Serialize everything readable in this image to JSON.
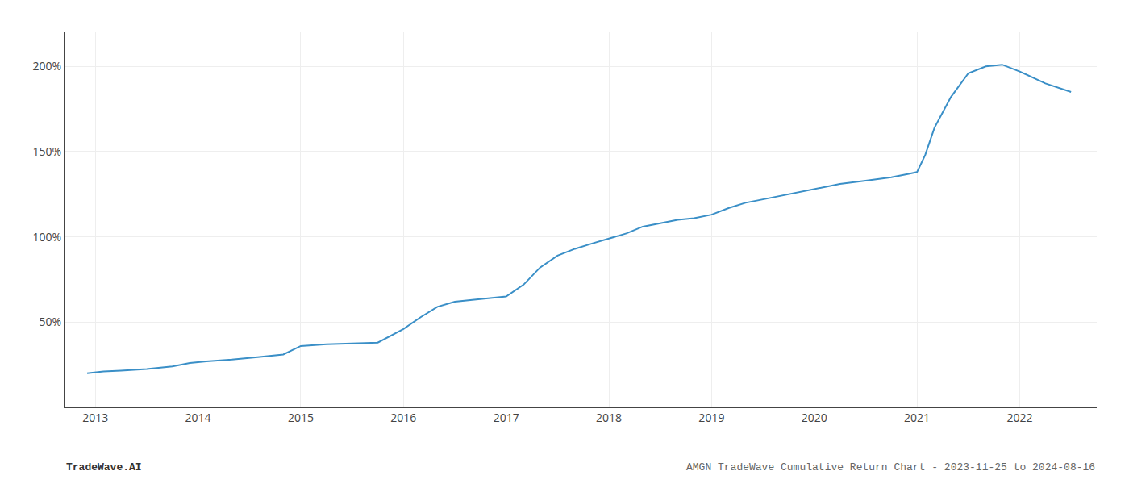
{
  "chart_data": {
    "type": "line",
    "title": "AMGN TradeWave Cumulative Return Chart - 2023-11-25 to 2024-08-16",
    "annotations": [
      "TradeWave.AI"
    ],
    "color": "#3a8fc7",
    "grid": true,
    "x": [
      2012.92,
      2013.08,
      2013.25,
      2013.5,
      2013.75,
      2013.92,
      2014.08,
      2014.33,
      2014.58,
      2014.83,
      2015.0,
      2015.25,
      2015.5,
      2015.75,
      2016.0,
      2016.17,
      2016.33,
      2016.5,
      2016.67,
      2016.83,
      2017.0,
      2017.17,
      2017.33,
      2017.5,
      2017.67,
      2017.83,
      2018.0,
      2018.17,
      2018.33,
      2018.5,
      2018.67,
      2018.83,
      2019.0,
      2019.17,
      2019.33,
      2019.5,
      2019.67,
      2019.83,
      2020.0,
      2020.25,
      2020.5,
      2020.75,
      2020.92,
      2021.0,
      2021.08,
      2021.17,
      2021.33,
      2021.5,
      2021.67,
      2021.83,
      2022.0,
      2022.25,
      2022.5
    ],
    "values": [
      20,
      21,
      21.5,
      22.5,
      24,
      26,
      27,
      28,
      29.5,
      31,
      36,
      37,
      37.5,
      38,
      46,
      53,
      59,
      62,
      63,
      64,
      65,
      72,
      82,
      89,
      93,
      96,
      99,
      102,
      106,
      108,
      110,
      111,
      113,
      117,
      120,
      122,
      124,
      126,
      128,
      131,
      133,
      135,
      137,
      138,
      148,
      164,
      182,
      196,
      200,
      201,
      197,
      190,
      185
    ],
    "xlim": [
      2012.7,
      2022.75
    ],
    "xticks": [
      2013,
      2014,
      2015,
      2016,
      2017,
      2018,
      2019,
      2020,
      2021,
      2022
    ],
    "ylim": [
      0,
      220
    ],
    "yticks": [
      {
        "value": 50,
        "label": "50%"
      },
      {
        "value": 100,
        "label": "100%"
      },
      {
        "value": 150,
        "label": "150%"
      },
      {
        "value": 200,
        "label": "200%"
      }
    ]
  }
}
